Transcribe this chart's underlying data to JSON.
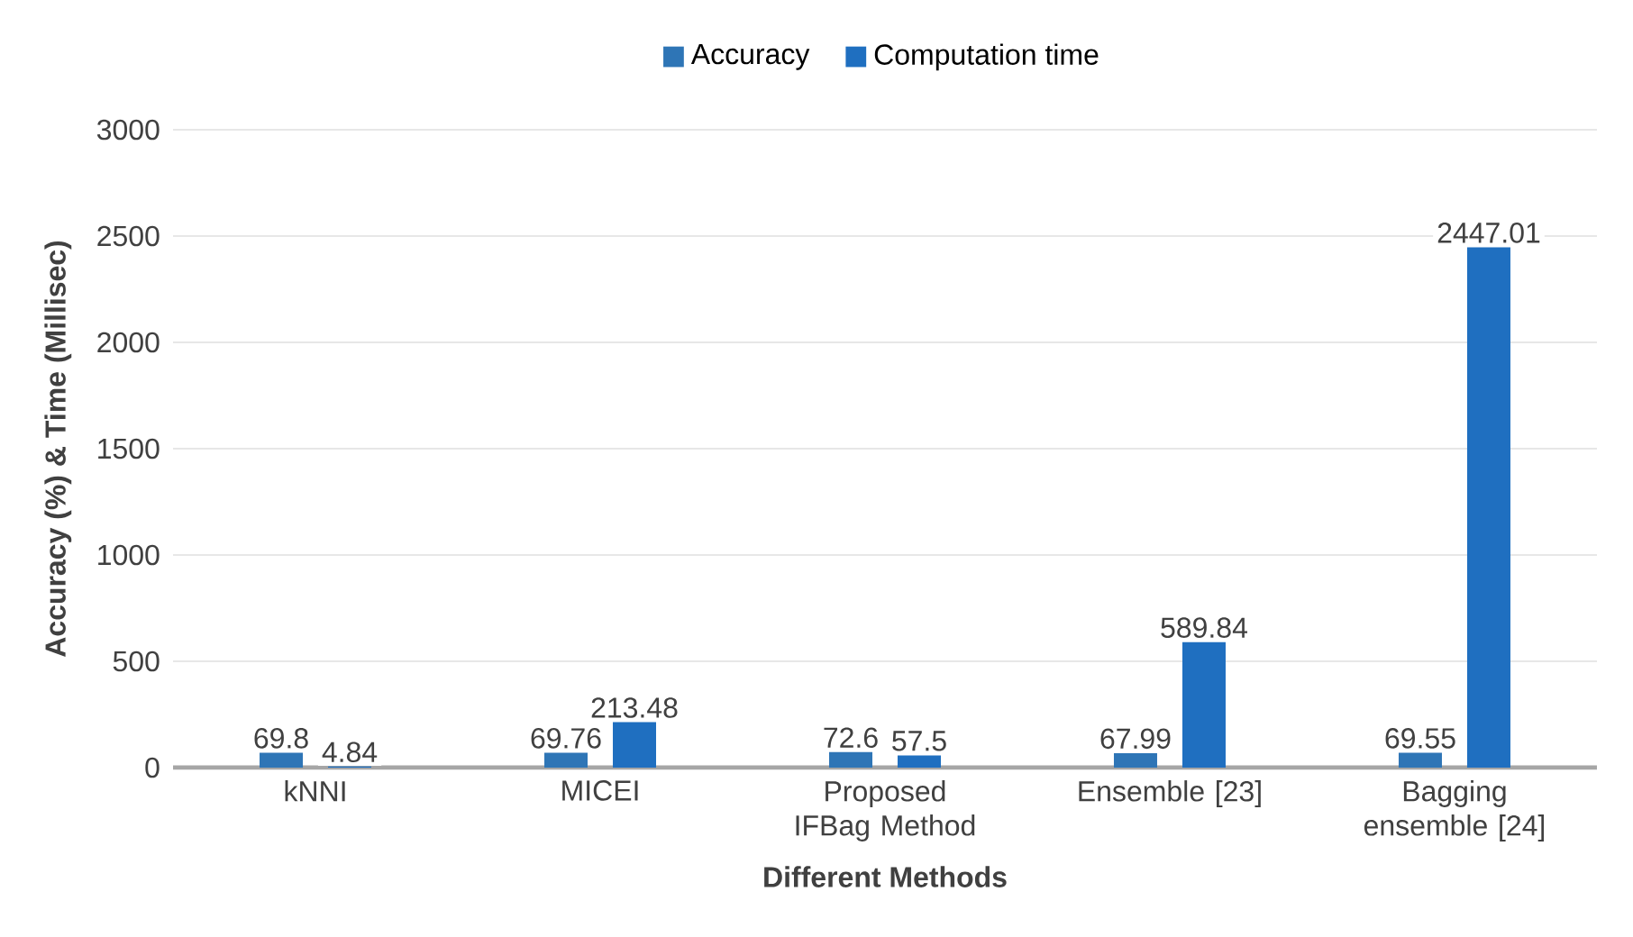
{
  "chart_data": {
    "type": "bar",
    "xlabel": "Different Methods",
    "ylabel": "Accuracy (%) & Time (Millisec)",
    "categories": [
      "kNNI",
      "MICEI",
      "Proposed IFBag Method",
      "Ensemble [23]",
      "Bagging ensemble [24]"
    ],
    "series": [
      {
        "name": "Accuracy",
        "color": "#2e75b6",
        "values": [
          69.8,
          69.76,
          72.6,
          67.99,
          69.55
        ]
      },
      {
        "name": "Computation time",
        "color": "#1f6fc0",
        "values": [
          4.84,
          213.48,
          57.5,
          589.84,
          2447.01
        ]
      }
    ],
    "ylim": [
      0,
      3000
    ],
    "yticks": [
      0,
      500,
      1000,
      1500,
      2000,
      2500,
      3000
    ],
    "grid": "y",
    "legend": "top",
    "data_labels": true
  }
}
